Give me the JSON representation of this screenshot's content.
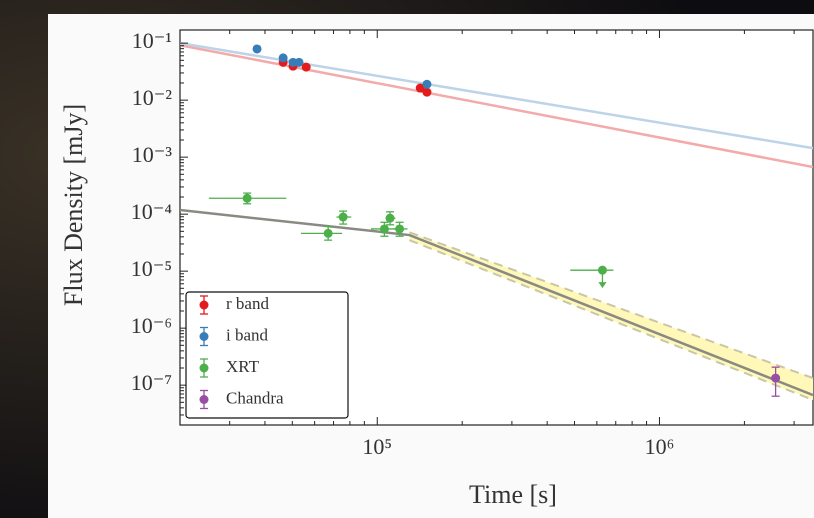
{
  "chart_data": {
    "type": "scatter",
    "xlabel": "Time [s]",
    "ylabel": "Flux Density [mJy]",
    "xscale": "log",
    "yscale": "log",
    "xlim": [
      20000,
      3500000
    ],
    "ylim": [
      2e-08,
      0.17
    ],
    "xticks": [
      {
        "value": 100000,
        "label": "10⁵"
      },
      {
        "value": 1000000,
        "label": "10⁶"
      }
    ],
    "yticks": [
      {
        "value": 0.1,
        "label": "10⁻¹"
      },
      {
        "value": 0.01,
        "label": "10⁻²"
      },
      {
        "value": 0.001,
        "label": "10⁻³"
      },
      {
        "value": 0.0001,
        "label": "10⁻⁴"
      },
      {
        "value": 1e-05,
        "label": "10⁻⁵"
      },
      {
        "value": 1e-06,
        "label": "10⁻⁶"
      },
      {
        "value": 1e-07,
        "label": "10⁻⁷"
      }
    ],
    "legend": "lower left",
    "series": [
      {
        "name": "r band",
        "color": "#e41a1c",
        "x": [
          46400,
          50300,
          56000,
          142000,
          150000
        ],
        "values": [
          0.046,
          0.0395,
          0.038,
          0.0163,
          0.0138
        ]
      },
      {
        "name": "i band",
        "color": "#377eb8",
        "x": [
          37500,
          46400,
          50300,
          52800,
          150000
        ],
        "values": [
          0.079,
          0.055,
          0.046,
          0.046,
          0.019
        ]
      },
      {
        "name": "XRT",
        "color": "#4daf4a",
        "x": [
          34600,
          67000,
          75700,
          106000,
          111000,
          120000,
          628000
        ],
        "x_low": [
          25300,
          53700,
          71700,
          95000,
          107000,
          114000,
          483000
        ],
        "x_high": [
          47600,
          75100,
          80900,
          118000,
          116000,
          128000,
          687000
        ],
        "values": [
          0.00019,
          4.6e-05,
          8.9e-05,
          5.5e-05,
          8.5e-05,
          5.5e-05,
          1.04e-05
        ],
        "y_low": [
          0.000152,
          3.5e-05,
          6.7e-05,
          4.1e-05,
          6.5e-05,
          4.1e-05,
          null
        ],
        "y_high": [
          0.000234,
          6.1e-05,
          0.000113,
          7.2e-05,
          0.00011,
          7.2e-05,
          null
        ],
        "upper_limit": [
          false,
          false,
          false,
          false,
          false,
          false,
          true
        ]
      },
      {
        "name": "Chandra",
        "color": "#984ea3",
        "x": [
          2580000
        ],
        "values": [
          1.33e-07
        ],
        "y_low": [
          6.4e-08
        ],
        "y_high": [
          2.07e-07
        ]
      }
    ],
    "fits": [
      {
        "color": "#f2aaaa",
        "x": [
          20000,
          3500000
        ],
        "values": [
          0.092,
          0.00067
        ]
      },
      {
        "color": "#bcd3e8",
        "x": [
          20000,
          3500000
        ],
        "values": [
          0.1,
          0.00144
        ]
      },
      {
        "color": "#8a8a84",
        "x": [
          20000,
          130000,
          3500000
        ],
        "values": [
          0.000118,
          4.3e-05,
          6.7e-08
        ]
      }
    ],
    "band": {
      "color": "#fff8b8",
      "edge_color": "#c9c7a4",
      "x": [
        130000,
        3500000
      ],
      "upper": [
        4.8e-05,
        1.33e-07
      ],
      "lower": [
        3.5e-05,
        5.5e-08
      ]
    }
  }
}
